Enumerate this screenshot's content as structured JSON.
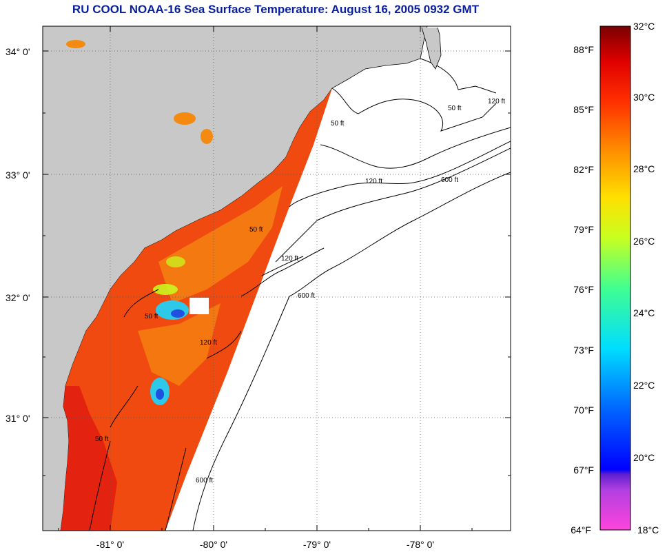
{
  "title": "RU COOL  NOAA-16  Sea Surface Temperature:  August 16, 2005 0932 GMT",
  "map": {
    "lat_labels": [
      "34° 0'",
      "33° 0'",
      "32° 0'",
      "31° 0'"
    ],
    "lon_labels": [
      "-81° 0'",
      "-80° 0'",
      "-79° 0'",
      "-78° 0'"
    ],
    "grid": "dotted",
    "contour_labels": [
      "50 ft",
      "50 ft",
      "50 ft",
      "50 ft",
      "50 ft",
      "120 ft",
      "120 ft",
      "120 ft",
      "120 ft",
      "600 ft",
      "600 ft",
      "600 ft"
    ]
  },
  "colorbar": {
    "fahrenheit_labels": [
      "88°F",
      "85°F",
      "82°F",
      "79°F",
      "76°F",
      "73°F",
      "70°F",
      "67°F",
      "64°F"
    ],
    "celsius_labels": [
      "32°C",
      "30°C",
      "28°C",
      "26°C",
      "24°C",
      "22°C",
      "20°C",
      "18°C"
    ],
    "colors": {
      "land": "#c8c8c8",
      "sst_warm": "#f04a10",
      "sst_hot": "#e01810",
      "sst_mid": "#f58a10",
      "sst_cool": "#2ec8e8",
      "title": "#0a1f9c"
    }
  }
}
